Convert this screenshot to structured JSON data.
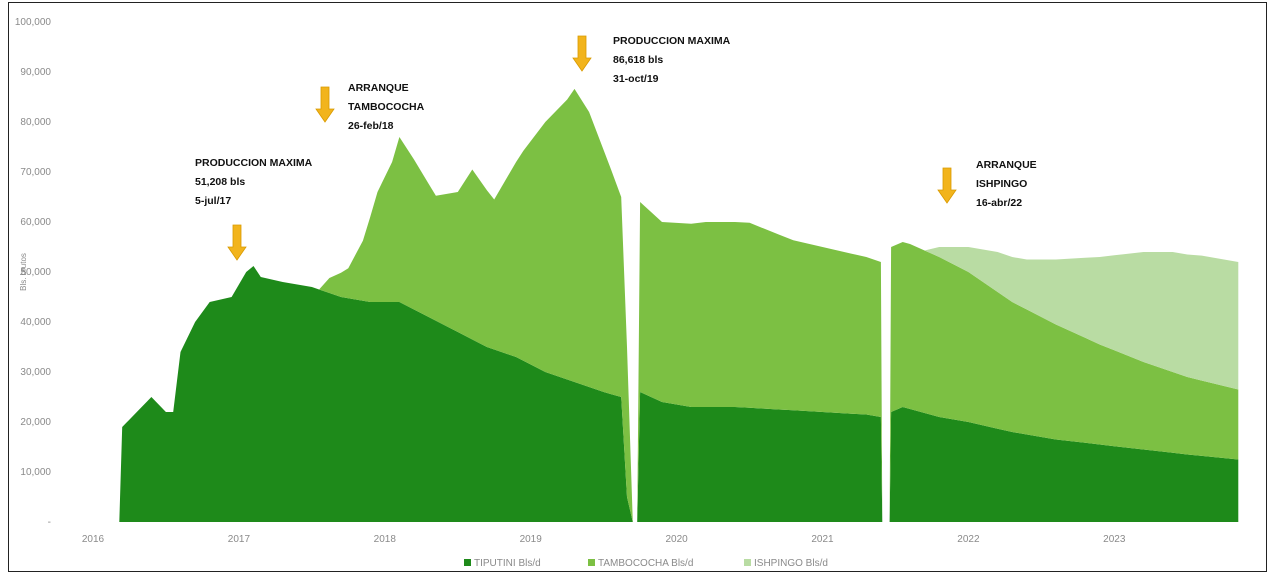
{
  "chart_data": {
    "type": "area",
    "stacked": true,
    "xlabel": "",
    "ylabel": "Bls. brutos",
    "ylim": [
      0,
      100000
    ],
    "yticks": [
      "-",
      "10,000",
      "20,000",
      "30,000",
      "40,000",
      "50,000",
      "60,000",
      "70,000",
      "80,000",
      "90,000",
      "100,000"
    ],
    "xticks": [
      "2016",
      "2017",
      "2018",
      "2019",
      "2020",
      "2021",
      "2022",
      "2023"
    ],
    "xlim": [
      2016.1,
      2023.85
    ],
    "grid": false,
    "legend_position": "bottom",
    "series": [
      {
        "name": "TIPUTINI Bls/d",
        "color": "#1e8a1a",
        "points": [
          [
            2016.1,
            0
          ],
          [
            2016.18,
            0
          ],
          [
            2016.2,
            19000
          ],
          [
            2016.3,
            22000
          ],
          [
            2016.4,
            25000
          ],
          [
            2016.5,
            22000
          ],
          [
            2016.55,
            22000
          ],
          [
            2016.6,
            34000
          ],
          [
            2016.7,
            40000
          ],
          [
            2016.8,
            44000
          ],
          [
            2016.95,
            45000
          ],
          [
            2017.05,
            50000
          ],
          [
            2017.1,
            51200
          ],
          [
            2017.15,
            49000
          ],
          [
            2017.3,
            48000
          ],
          [
            2017.5,
            47000
          ],
          [
            2017.7,
            45000
          ],
          [
            2017.9,
            44000
          ],
          [
            2018.1,
            44000
          ],
          [
            2018.3,
            41000
          ],
          [
            2018.5,
            38000
          ],
          [
            2018.7,
            35000
          ],
          [
            2018.9,
            33000
          ],
          [
            2019.1,
            30000
          ],
          [
            2019.3,
            28000
          ],
          [
            2019.5,
            26000
          ],
          [
            2019.62,
            25000
          ],
          [
            2019.66,
            5000
          ],
          [
            2019.7,
            0
          ],
          [
            2019.73,
            0
          ],
          [
            2019.75,
            26000
          ],
          [
            2019.9,
            24000
          ],
          [
            2020.1,
            23000
          ],
          [
            2020.4,
            23000
          ],
          [
            2020.7,
            22500
          ],
          [
            2021.0,
            22000
          ],
          [
            2021.3,
            21500
          ],
          [
            2021.4,
            21000
          ],
          [
            2021.41,
            0
          ],
          [
            2021.46,
            0
          ],
          [
            2021.47,
            22000
          ],
          [
            2021.55,
            23000
          ],
          [
            2021.8,
            21000
          ],
          [
            2022.0,
            20000
          ],
          [
            2022.3,
            18000
          ],
          [
            2022.6,
            16500
          ],
          [
            2022.9,
            15500
          ],
          [
            2023.2,
            14500
          ],
          [
            2023.5,
            13500
          ],
          [
            2023.85,
            12500
          ]
        ]
      },
      {
        "name": "TAMBOCOCHA Bls/d",
        "color": "#7cc043",
        "points": [
          [
            2016.1,
            0
          ],
          [
            2017.55,
            0
          ],
          [
            2017.62,
            3000
          ],
          [
            2017.75,
            6000
          ],
          [
            2017.85,
            12000
          ],
          [
            2017.95,
            22000
          ],
          [
            2018.05,
            28000
          ],
          [
            2018.1,
            33000
          ],
          [
            2018.2,
            30000
          ],
          [
            2018.35,
            25000
          ],
          [
            2018.5,
            28000
          ],
          [
            2018.6,
            34000
          ],
          [
            2018.75,
            30000
          ],
          [
            2018.95,
            42000
          ],
          [
            2019.1,
            50000
          ],
          [
            2019.25,
            56000
          ],
          [
            2019.3,
            58618
          ],
          [
            2019.4,
            55000
          ],
          [
            2019.55,
            45000
          ],
          [
            2019.62,
            40000
          ],
          [
            2019.66,
            30000
          ],
          [
            2019.7,
            0
          ],
          [
            2019.73,
            0
          ],
          [
            2019.75,
            38000
          ],
          [
            2019.9,
            36000
          ],
          [
            2020.2,
            37000
          ],
          [
            2020.5,
            37000
          ],
          [
            2020.8,
            34000
          ],
          [
            2021.0,
            33000
          ],
          [
            2021.2,
            32000
          ],
          [
            2021.4,
            31000
          ],
          [
            2021.41,
            0
          ],
          [
            2021.46,
            0
          ],
          [
            2021.47,
            33000
          ],
          [
            2021.6,
            33000
          ],
          [
            2021.8,
            32000
          ],
          [
            2022.0,
            30000
          ],
          [
            2022.3,
            26000
          ],
          [
            2022.6,
            23000
          ],
          [
            2022.9,
            20000
          ],
          [
            2023.2,
            17500
          ],
          [
            2023.5,
            15500
          ],
          [
            2023.85,
            14000
          ]
        ]
      },
      {
        "name": "ISHPINGO Bls/d",
        "color": "#b9dca3",
        "points": [
          [
            2016.1,
            0
          ],
          [
            2021.7,
            0
          ],
          [
            2021.8,
            2000
          ],
          [
            2022.0,
            5000
          ],
          [
            2022.2,
            8000
          ],
          [
            2022.4,
            10000
          ],
          [
            2022.6,
            13000
          ],
          [
            2022.8,
            16000
          ],
          [
            2023.0,
            19000
          ],
          [
            2023.2,
            22000
          ],
          [
            2023.4,
            24000
          ],
          [
            2023.6,
            25000
          ],
          [
            2023.85,
            25500
          ]
        ]
      }
    ],
    "annotations": [
      {
        "lines": [
          "PRODUCCION MAXIMA",
          "51,208  bls",
          "5-jul/17"
        ]
      },
      {
        "lines": [
          "ARRANQUE",
          "TAMBOCOCHA",
          "26-feb/18"
        ]
      },
      {
        "lines": [
          "PRODUCCION MAXIMA",
          "86,618  bls",
          "31-oct/19"
        ]
      },
      {
        "lines": [
          "ARRANQUE",
          "ISHPINGO",
          "16-abr/22"
        ]
      }
    ]
  }
}
